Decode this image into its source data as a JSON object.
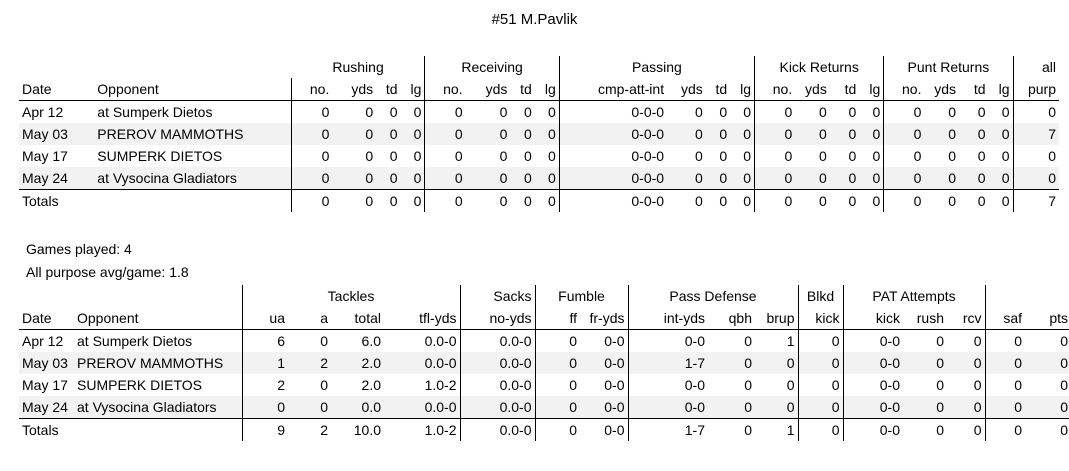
{
  "title": "#51 M.Pavlik",
  "offense": {
    "groups": [
      "Rushing",
      "Receiving",
      "Passing",
      "Kick Returns",
      "Punt Returns",
      "all"
    ],
    "headers": [
      "Date",
      "Opponent",
      "no.",
      "yds",
      "td",
      "lg",
      "no.",
      "yds",
      "td",
      "lg",
      "cmp-att-int",
      "yds",
      "td",
      "lg",
      "no.",
      "yds",
      "td",
      "lg",
      "no.",
      "yds",
      "td",
      "lg",
      "purp"
    ],
    "rows": [
      [
        "Apr 12",
        "at Sumperk Dietos",
        "0",
        "0",
        "0",
        "0",
        "0",
        "0",
        "0",
        "0",
        "0-0-0",
        "0",
        "0",
        "0",
        "0",
        "0",
        "0",
        "0",
        "0",
        "0",
        "0",
        "0",
        "0"
      ],
      [
        "May 03",
        "PREROV MAMMOTHS",
        "0",
        "0",
        "0",
        "0",
        "0",
        "0",
        "0",
        "0",
        "0-0-0",
        "0",
        "0",
        "0",
        "0",
        "0",
        "0",
        "0",
        "0",
        "0",
        "0",
        "0",
        "7"
      ],
      [
        "May 17",
        "SUMPERK DIETOS",
        "0",
        "0",
        "0",
        "0",
        "0",
        "0",
        "0",
        "0",
        "0-0-0",
        "0",
        "0",
        "0",
        "0",
        "0",
        "0",
        "0",
        "0",
        "0",
        "0",
        "0",
        "0"
      ],
      [
        "May 24",
        "at Vysocina Gladiators",
        "0",
        "0",
        "0",
        "0",
        "0",
        "0",
        "0",
        "0",
        "0-0-0",
        "0",
        "0",
        "0",
        "0",
        "0",
        "0",
        "0",
        "0",
        "0",
        "0",
        "0",
        "0"
      ]
    ],
    "totals": [
      "Totals",
      "",
      "0",
      "0",
      "0",
      "0",
      "0",
      "0",
      "0",
      "0",
      "0-0-0",
      "0",
      "0",
      "0",
      "0",
      "0",
      "0",
      "0",
      "0",
      "0",
      "0",
      "0",
      "7"
    ]
  },
  "summary": {
    "games_played": "Games played: 4",
    "all_purpose_avg": "All purpose avg/game: 1.8"
  },
  "defense": {
    "groups": [
      "Tackles",
      "Sacks",
      "Fumble",
      "Pass Defense",
      "Blkd",
      "PAT Attempts"
    ],
    "headers": [
      "Date",
      "Opponent",
      "ua",
      "a",
      "total",
      "tfl-yds",
      "no-yds",
      "ff",
      "fr-yds",
      "int-yds",
      "qbh",
      "brup",
      "kick",
      "kick",
      "rush",
      "rcv",
      "saf",
      "pts"
    ],
    "rows": [
      [
        "Apr 12",
        "at Sumperk Dietos",
        "6",
        "0",
        "6.0",
        "0.0-0",
        "0.0-0",
        "0",
        "0-0",
        "0-0",
        "0",
        "1",
        "0",
        "0-0",
        "0",
        "0",
        "0",
        "0"
      ],
      [
        "May 03",
        "PREROV MAMMOTHS",
        "1",
        "2",
        "2.0",
        "0.0-0",
        "0.0-0",
        "0",
        "0-0",
        "1-7",
        "0",
        "0",
        "0",
        "0-0",
        "0",
        "0",
        "0",
        "0"
      ],
      [
        "May 17",
        "SUMPERK DIETOS",
        "2",
        "0",
        "2.0",
        "1.0-2",
        "0.0-0",
        "0",
        "0-0",
        "0-0",
        "0",
        "0",
        "0",
        "0-0",
        "0",
        "0",
        "0",
        "0"
      ],
      [
        "May 24",
        "at Vysocina Gladiators",
        "0",
        "0",
        "0.0",
        "0.0-0",
        "0.0-0",
        "0",
        "0-0",
        "0-0",
        "0",
        "0",
        "0",
        "0-0",
        "0",
        "0",
        "0",
        "0"
      ]
    ],
    "totals": [
      "Totals",
      "",
      "9",
      "2",
      "10.0",
      "1.0-2",
      "0.0-0",
      "0",
      "0-0",
      "1-7",
      "0",
      "1",
      "0",
      "0-0",
      "0",
      "0",
      "0",
      "0"
    ]
  }
}
